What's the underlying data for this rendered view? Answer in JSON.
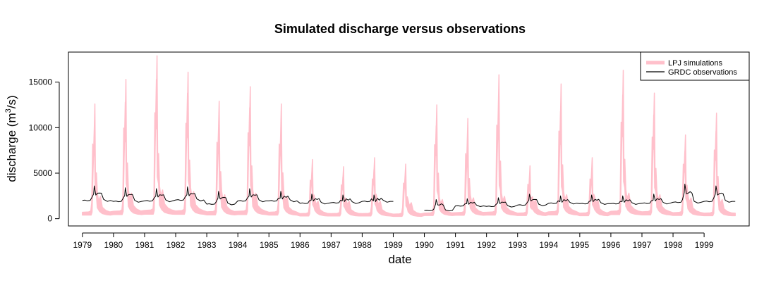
{
  "chart_data": {
    "type": "line",
    "title": "Simulated discharge versus observations",
    "xlabel": "date",
    "ylabel": {
      "main": "discharge (m",
      "sup": "3",
      "tail": "/s)"
    },
    "ylim": [
      -800,
      18300
    ],
    "xlim": [
      1978.55,
      2000.45
    ],
    "y_ticks": [
      0,
      5000,
      10000,
      15000
    ],
    "x_ticks": [
      "1979",
      "1980",
      "1981",
      "1982",
      "1983",
      "1984",
      "1985",
      "1986",
      "1987",
      "1988",
      "1989",
      "1990",
      "1991",
      "1992",
      "1993",
      "1994",
      "1995",
      "1996",
      "1997",
      "1998",
      "1999"
    ],
    "grid": false,
    "legend_position": "top-right",
    "legend": [
      {
        "label": "LPJ simulations",
        "color": "#ffc0cb"
      },
      {
        "label": "GRDC observations",
        "color": "#000000"
      }
    ],
    "series": [
      {
        "name": "LPJ simulations",
        "color": "#ffc0cb",
        "style": "band",
        "years": [
          1979,
          1980,
          1981,
          1982,
          1983,
          1984,
          1985,
          1986,
          1987,
          1988,
          1989,
          1990,
          1991,
          1992,
          1993,
          1994,
          1995,
          1996,
          1997,
          1998,
          1999
        ],
        "peak_upper": [
          12600,
          15300,
          17900,
          16100,
          12900,
          14500,
          12600,
          6500,
          5700,
          6700,
          6000,
          12500,
          11000,
          15800,
          5800,
          14800,
          6700,
          16300,
          13800,
          9200,
          11600
        ],
        "peak_lower": [
          9800,
          12800,
          15300,
          13800,
          10000,
          12200,
          9700,
          5100,
          4600,
          5400,
          4700,
          10200,
          7900,
          12200,
          4300,
          11800,
          5100,
          13600,
          11400,
          7400,
          9600
        ],
        "baseflow_upper": [
          700,
          800,
          900,
          850,
          750,
          800,
          700,
          550,
          550,
          550,
          500,
          600,
          650,
          700,
          600,
          750,
          600,
          800,
          750,
          650,
          600
        ],
        "baseflow_lower": [
          400,
          450,
          500,
          480,
          420,
          450,
          400,
          300,
          300,
          300,
          250,
          350,
          380,
          400,
          350,
          420,
          330,
          450,
          420,
          360,
          330
        ]
      },
      {
        "name": "GRDC observations",
        "color": "#000000",
        "style": "line",
        "years": [
          1979,
          1980,
          1981,
          1982,
          1983,
          1984,
          1985,
          1986,
          1987,
          1988,
          1989,
          1990,
          1991,
          1992,
          1993,
          1994,
          1995,
          1996,
          1997,
          1998,
          1999
        ],
        "peak": [
          3600,
          3400,
          3300,
          3500,
          3000,
          3300,
          3000,
          2700,
          2600,
          2600,
          null,
          2100,
          2200,
          2300,
          2700,
          2500,
          2600,
          2500,
          2700,
          3800,
          3600
        ],
        "baseflow": [
          2000,
          1900,
          1950,
          2050,
          1600,
          1950,
          1950,
          1700,
          1750,
          1900,
          null,
          900,
          1400,
          1350,
          1500,
          1700,
          1650,
          1650,
          1700,
          1800,
          1900
        ],
        "gap": [
          1989.0,
          1990.0
        ]
      }
    ]
  }
}
